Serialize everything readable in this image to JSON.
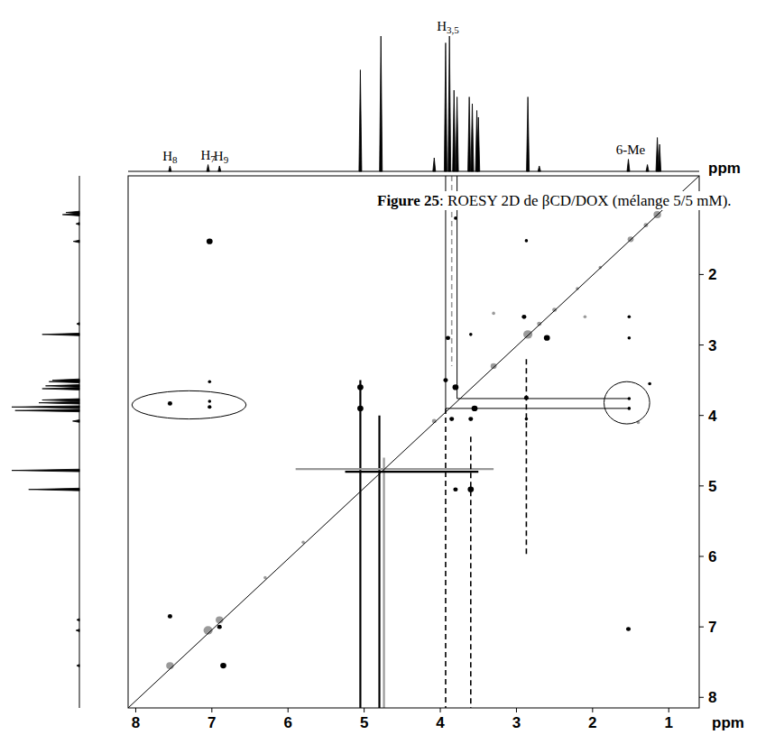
{
  "chart_data": {
    "type": "nmr2d",
    "title": "Figure 25: ROESY 2D de βCD/DOX (mélange 5/5 mM).",
    "x_label": "ppm",
    "y_label": "ppm",
    "xlim": [
      8.1,
      0.6
    ],
    "ylim": [
      0.6,
      8.15
    ],
    "xticks": [
      8,
      7,
      6,
      5,
      4,
      3,
      2,
      1
    ],
    "yticks": [
      1,
      2,
      3,
      4,
      5,
      6,
      7,
      8
    ],
    "spectrum": {
      "ppm": [
        7.55,
        7.05,
        6.9,
        5.05,
        4.78,
        4.08,
        3.93,
        3.88,
        3.82,
        3.78,
        3.62,
        3.58,
        3.52,
        3.5,
        2.85,
        2.7,
        1.53,
        1.28,
        1.15,
        1.12
      ],
      "height": [
        0.04,
        0.05,
        0.04,
        0.75,
        1.0,
        0.1,
        0.95,
        1.0,
        0.6,
        0.55,
        0.55,
        0.5,
        0.45,
        0.4,
        0.55,
        0.04,
        0.09,
        0.05,
        0.25,
        0.2
      ]
    },
    "peak_labels": {
      "text": [
        "H8",
        "H7",
        "H9",
        "H3,5",
        "6-Me"
      ],
      "ppm": [
        7.55,
        7.05,
        6.88,
        3.9,
        1.5
      ]
    },
    "black_peaks": {
      "x": [
        7.03,
        1.53,
        7.03,
        7.55,
        7.03,
        7.03,
        1.52,
        1.52,
        1.52,
        1.52,
        2.87,
        2.87,
        2.87,
        2.6,
        2.9,
        3.9,
        3.6,
        3.93,
        3.55,
        3.8,
        3.85,
        3.6,
        3.8,
        3.6,
        5.05,
        5.05,
        6.85,
        7.55,
        6.9,
        1.25,
        3.8
      ],
      "y": [
        1.53,
        7.03,
        3.52,
        3.83,
        3.88,
        3.8,
        3.76,
        3.9,
        2.6,
        2.9,
        3.75,
        4.05,
        1.52,
        2.9,
        2.6,
        2.9,
        2.85,
        3.5,
        3.9,
        3.6,
        4.05,
        4.05,
        5.05,
        5.05,
        3.6,
        3.9,
        7.55,
        6.85,
        7.0,
        3.55,
        1.2
      ],
      "size": [
        0.04,
        0.03,
        0.02,
        0.03,
        0.025,
        0.02,
        0.02,
        0.02,
        0.02,
        0.02,
        0.03,
        0.02,
        0.02,
        0.04,
        0.03,
        0.03,
        0.02,
        0.03,
        0.04,
        0.04,
        0.03,
        0.03,
        0.03,
        0.04,
        0.04,
        0.04,
        0.04,
        0.03,
        0.03,
        0.02,
        0.02
      ]
    },
    "grey_peaks": {
      "x": [
        7.55,
        7.05,
        6.9,
        1.15,
        1.3,
        1.5,
        2.85,
        2.7,
        2.5,
        2.2,
        1.9,
        3.3,
        4.08,
        6.3,
        5.8,
        2.1,
        1.4,
        3.3
      ],
      "y": [
        7.55,
        7.05,
        6.9,
        1.15,
        1.3,
        1.5,
        2.85,
        2.7,
        2.5,
        2.2,
        1.9,
        3.3,
        4.08,
        6.3,
        5.8,
        2.6,
        4.1,
        2.55
      ],
      "size": [
        0.05,
        0.06,
        0.05,
        0.05,
        0.03,
        0.04,
        0.06,
        0.03,
        0.03,
        0.02,
        0.02,
        0.04,
        0.03,
        0.02,
        0.02,
        0.02,
        0.02,
        0.02
      ]
    },
    "streaks": [
      {
        "x": [
          5.05,
          5.05
        ],
        "y": [
          3.5,
          8.15
        ],
        "color": "#000000",
        "line_style": "solid"
      },
      {
        "x": [
          4.8,
          4.8
        ],
        "y": [
          4.0,
          8.15
        ],
        "color": "#000000",
        "line_style": "solid"
      },
      {
        "x": [
          4.74,
          4.74
        ],
        "y": [
          4.6,
          8.15
        ],
        "color": "#999999",
        "line_style": "solid"
      },
      {
        "x": [
          5.25,
          3.5
        ],
        "y": [
          4.8,
          4.8
        ],
        "color": "#000000",
        "line_style": "solid"
      },
      {
        "x": [
          5.9,
          3.3
        ],
        "y": [
          4.76,
          4.76
        ],
        "color": "#999999",
        "line_style": "solid"
      },
      {
        "x": [
          3.93,
          3.93
        ],
        "y": [
          3.9,
          8.15
        ],
        "color": "#000000",
        "line_style": "dashed"
      },
      {
        "x": [
          3.6,
          3.6
        ],
        "y": [
          4.3,
          8.15
        ],
        "color": "#000000",
        "line_style": "dashed"
      },
      {
        "x": [
          3.85,
          3.85
        ],
        "y": [
          0.6,
          3.3
        ],
        "color": "#999999",
        "line_style": "dashed"
      },
      {
        "x": [
          2.87,
          2.87
        ],
        "y": [
          3.2,
          6.0
        ],
        "color": "#000000",
        "line_style": "dashed"
      }
    ],
    "guides": [
      {
        "x": [
          0.6,
          8.1
        ],
        "y": [
          0.6,
          8.15
        ]
      },
      {
        "x": [
          3.93,
          3.93
        ],
        "y": [
          0.6,
          3.9
        ]
      },
      {
        "x": [
          3.78,
          3.78
        ],
        "y": [
          0.6,
          3.76
        ]
      },
      {
        "x": [
          3.78,
          1.52
        ],
        "y": [
          3.76,
          3.76
        ]
      },
      {
        "x": [
          3.93,
          1.52
        ],
        "y": [
          3.9,
          3.9
        ]
      }
    ],
    "highlights": {
      "x": [
        7.3,
        1.55
      ],
      "y": [
        3.85,
        3.82
      ],
      "rx": [
        0.75,
        0.3
      ],
      "ry": [
        0.2,
        0.3
      ]
    }
  }
}
